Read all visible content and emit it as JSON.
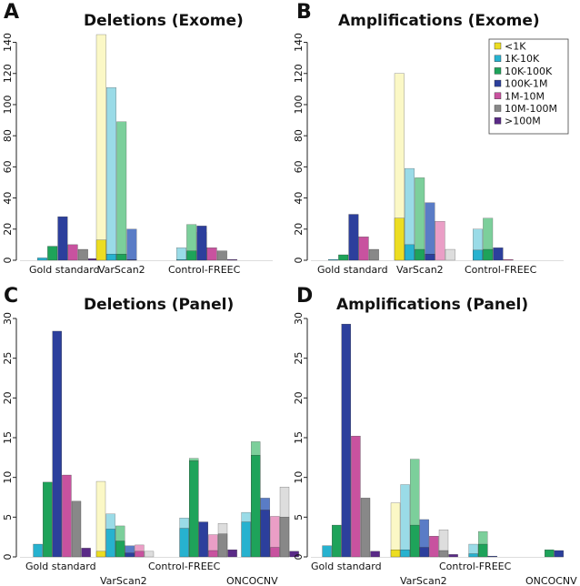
{
  "colors": {
    "lt1k": [
      "#ecdd22",
      "#fbf8c6"
    ],
    "k1_10k": [
      "#27b2cf",
      "#9adbe7"
    ],
    "k10_100k": [
      "#1ea35a",
      "#7ccf9b"
    ],
    "k100_1m": [
      "#2c3f9c",
      "#5a7cc6"
    ],
    "m1_10m": [
      "#c8529f",
      "#ea9ec6"
    ],
    "m10_100m": [
      "#888888",
      "#dddddd"
    ],
    "gt100m": [
      "#5a2a87",
      "#9d79c0"
    ]
  },
  "legend": {
    "entries": [
      {
        "key": "lt1k",
        "label": "<1K"
      },
      {
        "key": "k1_10k",
        "label": "1K-10K"
      },
      {
        "key": "k10_100k",
        "label": "10K-100K"
      },
      {
        "key": "k100_1m",
        "label": "100K-1M"
      },
      {
        "key": "m1_10m",
        "label": "1M-10M"
      },
      {
        "key": "m10_100m",
        "label": "10M-100M"
      },
      {
        "key": "gt100m",
        "label": ">100M"
      }
    ]
  },
  "chart_data": [
    {
      "id": "A",
      "letter": "A",
      "type": "bar",
      "title": "Deletions (Exome)",
      "ylim": [
        0,
        145
      ],
      "yticks": [
        0,
        20,
        40,
        60,
        80,
        100,
        120,
        140
      ],
      "series_keys": [
        "lt1k",
        "k1_10k",
        "k10_100k",
        "k100_1m",
        "m1_10m",
        "m10_100m",
        "gt100m"
      ],
      "groups": [
        {
          "name": "Gold standard",
          "label_row": 0,
          "values": [
            0,
            1.5,
            9,
            28,
            10,
            7,
            1
          ]
        },
        {
          "name": "VarScan2",
          "label_row": 0,
          "values": [
            13,
            4,
            4,
            0.5,
            0,
            0,
            0
          ],
          "outer": [
            145,
            111,
            89,
            20,
            0,
            0,
            0
          ]
        },
        {
          "name": "Control-FREEC",
          "label_row": 0,
          "values": [
            0,
            0.5,
            6,
            22,
            8,
            6,
            0.5
          ],
          "outer": [
            0,
            8,
            23,
            18,
            0,
            0,
            0
          ]
        }
      ]
    },
    {
      "id": "B",
      "letter": "B",
      "type": "bar",
      "title": "Amplifications (Exome)",
      "ylim": [
        0,
        145
      ],
      "yticks": [
        0,
        20,
        40,
        60,
        80,
        100,
        120,
        140
      ],
      "series_keys": [
        "lt1k",
        "k1_10k",
        "k10_100k",
        "k100_1m",
        "m1_10m",
        "m10_100m",
        "gt100m"
      ],
      "groups": [
        {
          "name": "Gold standard",
          "label_row": 0,
          "values": [
            0,
            0.5,
            3.5,
            29.5,
            15,
            7,
            0
          ]
        },
        {
          "name": "VarScan2",
          "label_row": 0,
          "values": [
            27,
            10,
            7,
            4,
            0,
            0,
            0
          ],
          "outer": [
            120,
            59,
            53,
            37,
            25,
            7,
            0
          ]
        },
        {
          "name": "Control-FREEC",
          "label_row": 0,
          "values": [
            0,
            6.5,
            7,
            8,
            0.5,
            0,
            0
          ],
          "outer": [
            0,
            20,
            27,
            0,
            0,
            0,
            0
          ]
        }
      ]
    },
    {
      "id": "C",
      "letter": "C",
      "type": "bar",
      "title": "Deletions (Panel)",
      "ylim": [
        0,
        30
      ],
      "yticks": [
        0,
        5,
        10,
        15,
        20,
        25,
        30
      ],
      "series_keys": [
        "lt1k",
        "k1_10k",
        "k10_100k",
        "k100_1m",
        "m1_10m",
        "m10_100m",
        "gt100m"
      ],
      "groups": [
        {
          "name": "Gold standard",
          "label_row": 0,
          "values": [
            0,
            1.6,
            9.4,
            28.4,
            10.3,
            7,
            1.1
          ]
        },
        {
          "name": "VarScan2",
          "label_row": 1,
          "values": [
            0.7,
            3.5,
            2,
            0.5,
            0.7,
            0,
            0
          ],
          "outer": [
            9.5,
            5.4,
            3.9,
            1.4,
            1.5,
            0.7,
            0
          ]
        },
        {
          "name": "Control-FREEC",
          "label_row": 0,
          "values": [
            0,
            3.6,
            12.1,
            4.4,
            0.8,
            2.9,
            0.9
          ],
          "outer": [
            0,
            4.9,
            12.4,
            0,
            2.8,
            4.2,
            0
          ]
        },
        {
          "name": "ONCOCNV",
          "label_row": 1,
          "values": [
            0,
            4.4,
            12.8,
            5.9,
            1.2,
            5,
            0.7
          ],
          "outer": [
            0,
            5.6,
            14.5,
            7.4,
            5.1,
            8.8,
            0
          ]
        }
      ]
    },
    {
      "id": "D",
      "letter": "D",
      "type": "bar",
      "title": "Amplifications (Panel)",
      "ylim": [
        0,
        30
      ],
      "yticks": [
        0,
        5,
        10,
        15,
        20,
        25,
        30
      ],
      "series_keys": [
        "lt1k",
        "k1_10k",
        "k10_100k",
        "k100_1m",
        "m1_10m",
        "m10_100m",
        "gt100m"
      ],
      "groups": [
        {
          "name": "Gold standard",
          "label_row": 0,
          "values": [
            0,
            1.4,
            4,
            29.3,
            15.2,
            7.4,
            0.7
          ]
        },
        {
          "name": "VarScan2",
          "label_row": 1,
          "values": [
            0.9,
            0.9,
            4,
            1.2,
            2.6,
            0.8,
            0.3
          ],
          "outer": [
            6.8,
            9.1,
            12.3,
            4.7,
            0,
            3.4,
            0
          ]
        },
        {
          "name": "Control-FREEC",
          "label_row": 0,
          "values": [
            0,
            0.4,
            1.6,
            0.1,
            0,
            0,
            0
          ],
          "outer": [
            0,
            1.6,
            3.2,
            0,
            0,
            0,
            0
          ]
        },
        {
          "name": "ONCOCNV",
          "label_row": 1,
          "values": [
            0,
            0,
            0.9,
            0.8,
            0,
            0,
            0
          ]
        }
      ]
    }
  ]
}
